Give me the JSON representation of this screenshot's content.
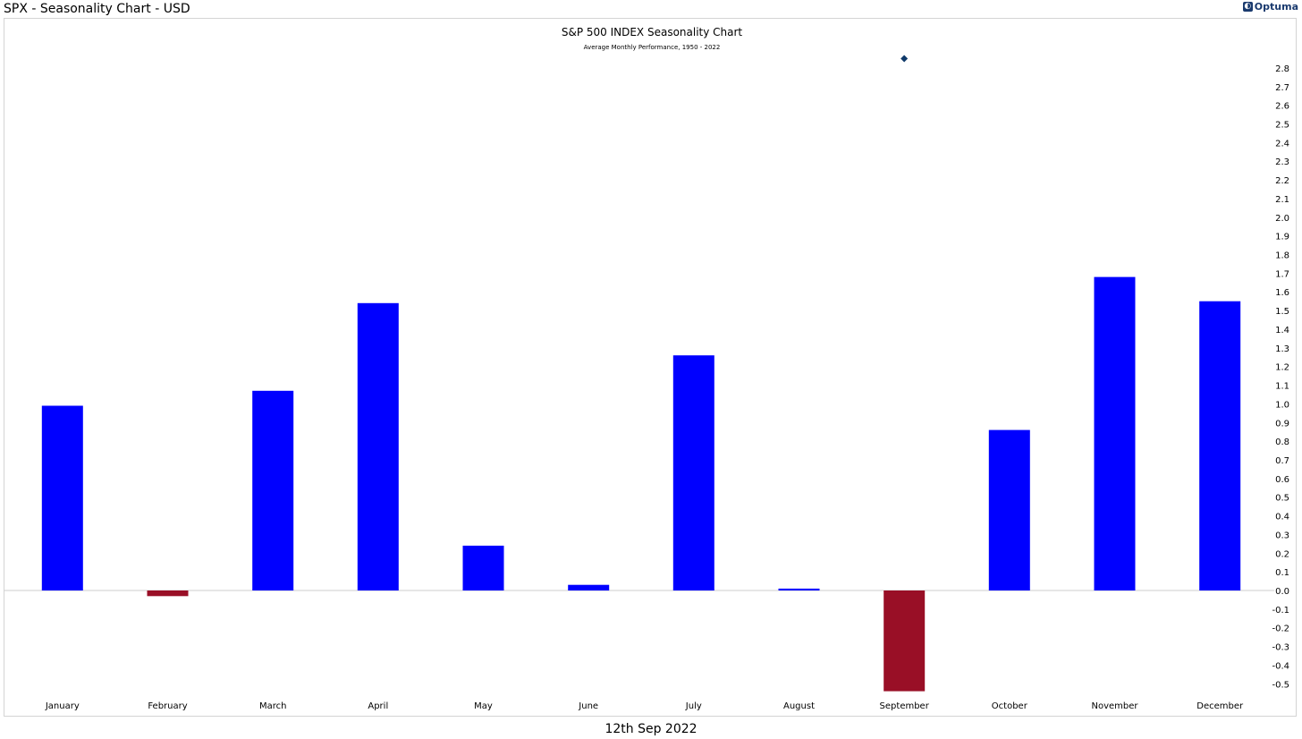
{
  "window": {
    "title": "SPX - Seasonality Chart - USD",
    "brand": "Optuma",
    "brand_icon": "optuma-logo-icon"
  },
  "footer": {
    "date": "12th Sep 2022"
  },
  "colors": {
    "positive": "#0000ff",
    "negative": "#990f26",
    "marker": "#103a6a",
    "zero_line": "#cccccc"
  },
  "chart_data": {
    "type": "bar",
    "title": "S&P 500 INDEX Seasonality Chart",
    "subtitle": "Average Monthly Performance, 1950 - 2022",
    "xlabel": "",
    "ylabel": "",
    "categories": [
      "January",
      "February",
      "March",
      "April",
      "May",
      "June",
      "July",
      "August",
      "September",
      "October",
      "November",
      "December"
    ],
    "values": [
      0.99,
      -0.03,
      1.07,
      1.54,
      0.24,
      0.03,
      1.26,
      0.01,
      -0.54,
      0.86,
      1.68,
      1.55
    ],
    "ylim": [
      -0.55,
      2.85
    ],
    "yticks": [
      "2.8",
      "2.7",
      "2.6",
      "2.5",
      "2.4",
      "2.3",
      "2.2",
      "2.1",
      "2.0",
      "1.9",
      "1.8",
      "1.7",
      "1.6",
      "1.5",
      "1.4",
      "1.3",
      "1.2",
      "1.1",
      "1.0",
      "0.9",
      "0.8",
      "0.7",
      "0.6",
      "0.5",
      "0.4",
      "0.3",
      "0.2",
      "0.1",
      "0.0",
      "-0.1",
      "-0.2",
      "-0.3",
      "-0.4",
      "-0.5"
    ],
    "y_axis_position": "right",
    "grid": false,
    "legend": "none",
    "current_marker": {
      "category": "September",
      "value": 2.85,
      "shape": "diamond"
    }
  }
}
